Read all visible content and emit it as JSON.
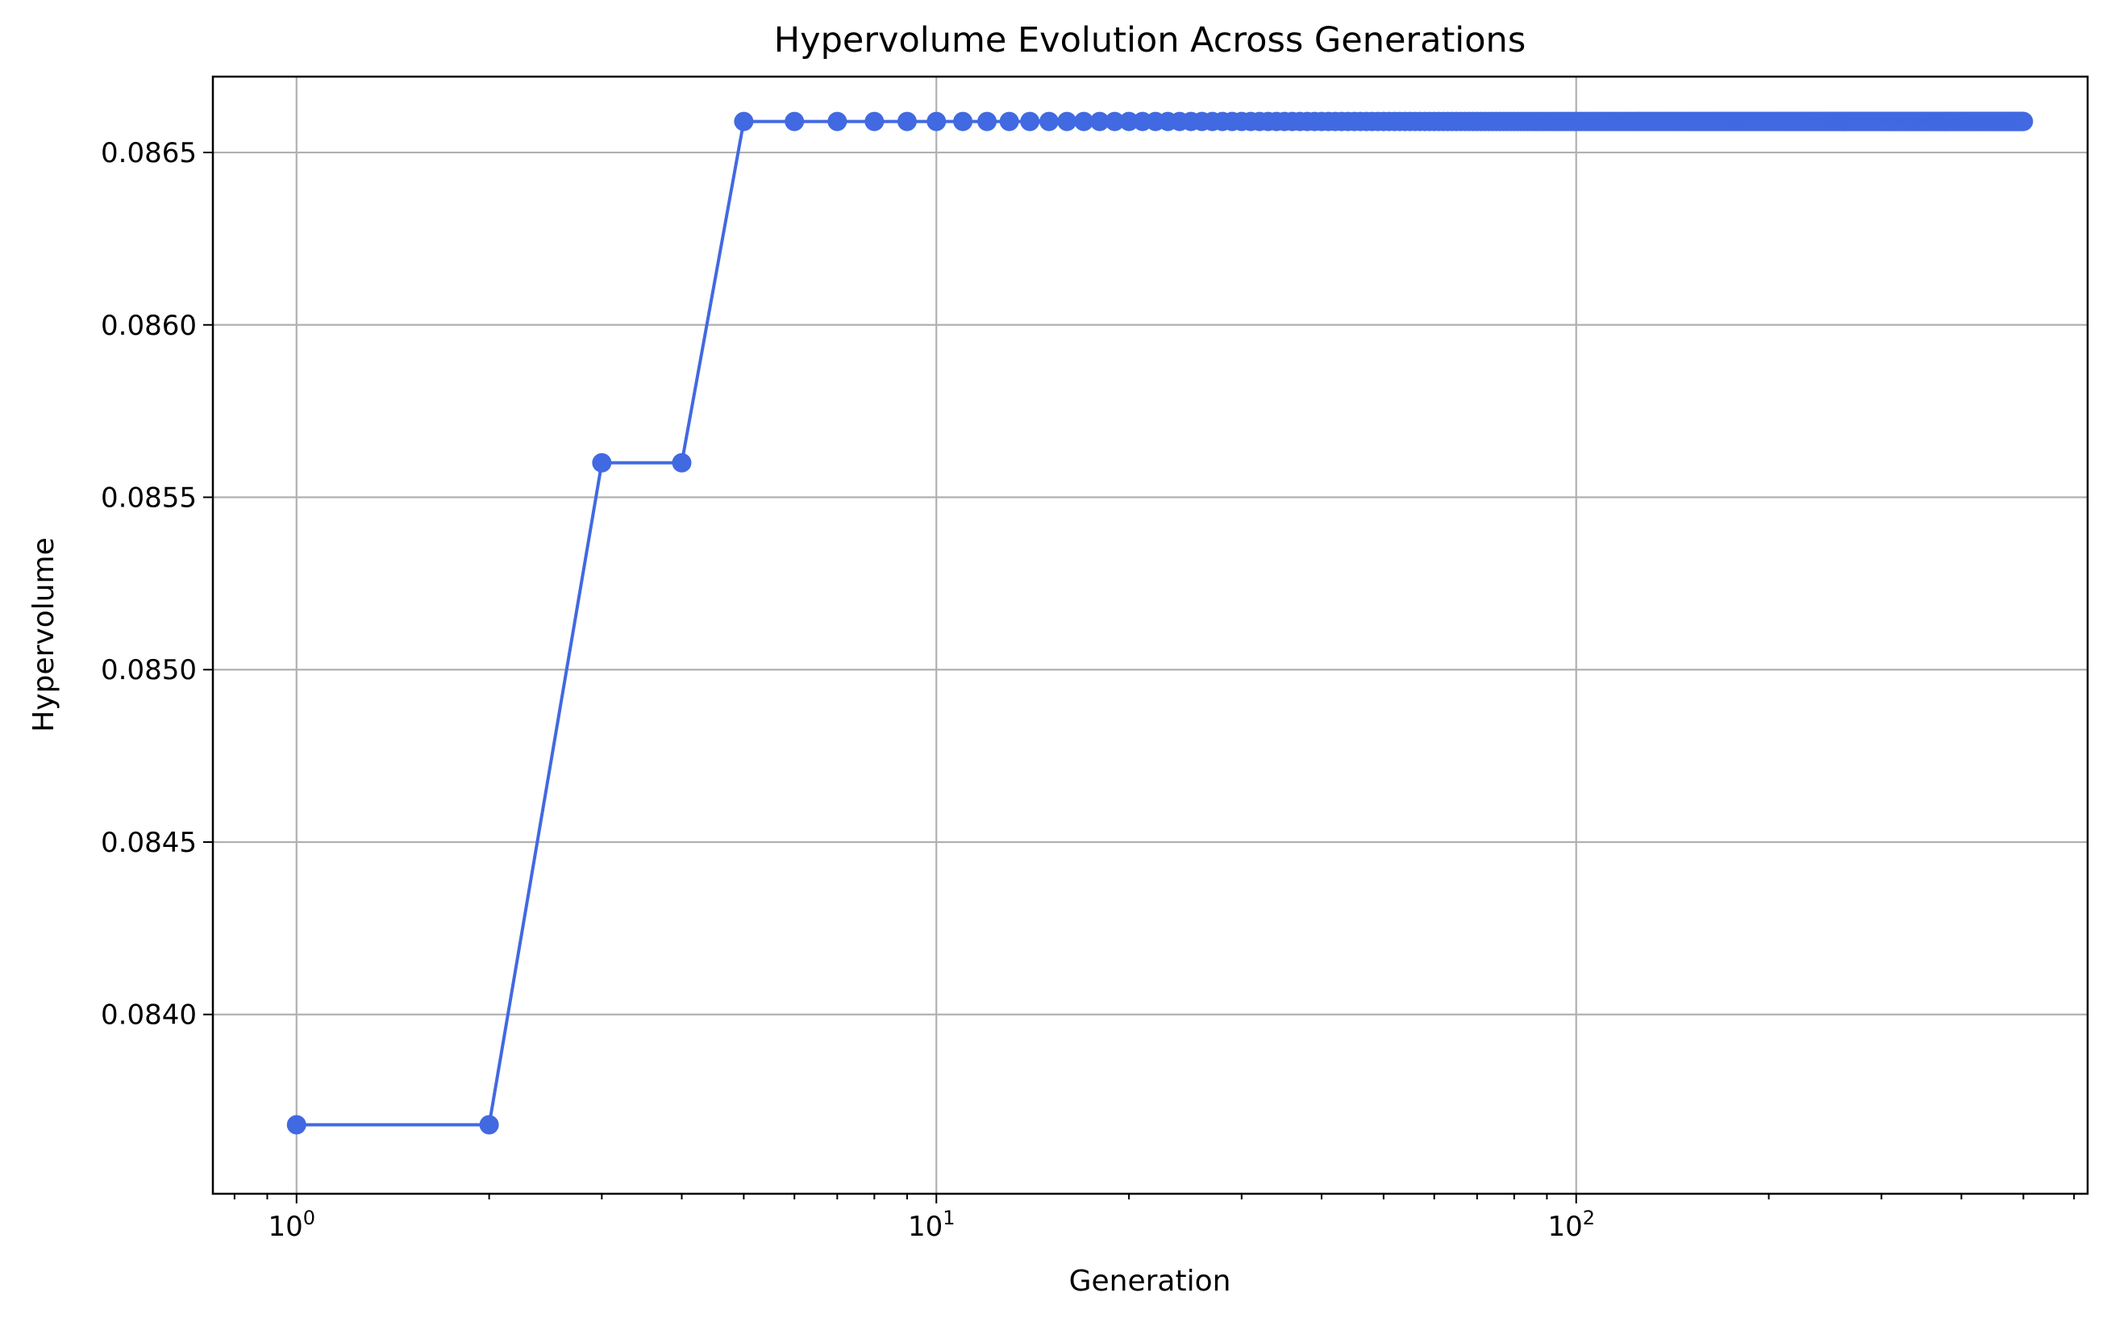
{
  "chart_data": {
    "type": "line",
    "title": "Hypervolume Evolution Across Generations",
    "xlabel": "Generation",
    "ylabel": "Hypervolume",
    "xscale": "log",
    "xlim": [
      0.74,
      630
    ],
    "ylim": [
      0.08348,
      0.08672
    ],
    "grid": true,
    "line_color": "#4169e1",
    "marker": "circle",
    "x_ticks": [
      {
        "value": 1,
        "base": "10",
        "exp": "0"
      },
      {
        "value": 10,
        "base": "10",
        "exp": "1"
      },
      {
        "value": 100,
        "base": "10",
        "exp": "2"
      }
    ],
    "y_ticks": [
      {
        "value": 0.084,
        "label": "0.0840"
      },
      {
        "value": 0.0845,
        "label": "0.0845"
      },
      {
        "value": 0.085,
        "label": "0.0850"
      },
      {
        "value": 0.0855,
        "label": "0.0855"
      },
      {
        "value": 0.086,
        "label": "0.0860"
      },
      {
        "value": 0.0865,
        "label": "0.0865"
      }
    ],
    "series": [
      {
        "segments": [
          {
            "x_start": 1,
            "x_end": 2,
            "y": 0.08368
          },
          {
            "x_start": 3,
            "x_end": 4,
            "y": 0.0856
          },
          {
            "x_start": 5,
            "x_end": 500,
            "y": 0.08659
          }
        ]
      }
    ]
  }
}
